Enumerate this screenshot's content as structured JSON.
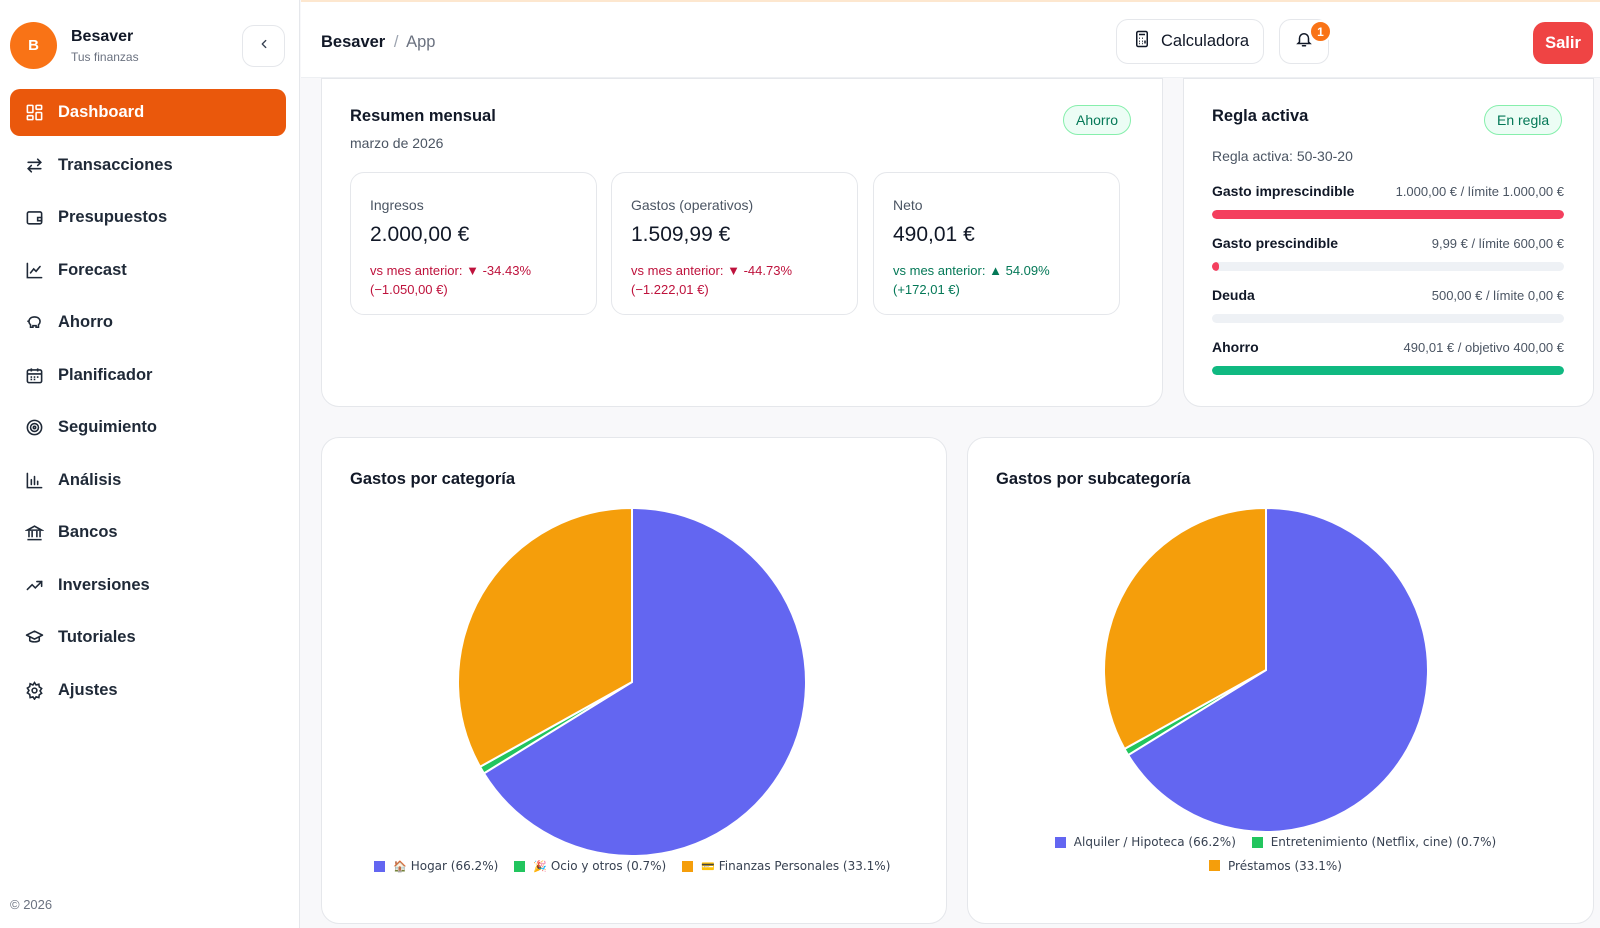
{
  "brand": {
    "logo_letter": "B",
    "name": "Besaver",
    "tagline": "Tus finanzas"
  },
  "sidebar": {
    "items": [
      {
        "label": "Dashboard",
        "icon": "dashboard-icon",
        "active": true
      },
      {
        "label": "Transacciones",
        "icon": "arrows-icon"
      },
      {
        "label": "Presupuestos",
        "icon": "wallet-icon"
      },
      {
        "label": "Forecast",
        "icon": "line-chart-icon"
      },
      {
        "label": "Ahorro",
        "icon": "piggy-bank-icon"
      },
      {
        "label": "Planificador",
        "icon": "calendar-icon"
      },
      {
        "label": "Seguimiento",
        "icon": "target-icon"
      },
      {
        "label": "Análisis",
        "icon": "bar-chart-icon"
      },
      {
        "label": "Bancos",
        "icon": "bank-icon"
      },
      {
        "label": "Inversiones",
        "icon": "trending-up-icon"
      },
      {
        "label": "Tutoriales",
        "icon": "graduation-cap-icon"
      },
      {
        "label": "Ajustes",
        "icon": "gear-icon"
      }
    ],
    "footer": "© 2026"
  },
  "topbar": {
    "breadcrumb_root": "Besaver",
    "breadcrumb_sep": "/",
    "breadcrumb_current": "App",
    "calculator_label": "Calculadora",
    "notification_count": "1",
    "logout_label": "Salir"
  },
  "summary": {
    "title": "Resumen mensual",
    "period": "marzo de 2026",
    "badge": "Ahorro",
    "stats": [
      {
        "label": "Ingresos",
        "value": "2.000,00 €",
        "delta_prefix": "vs mes anterior: ",
        "arrow": "▼",
        "delta_pct": "-34.43%",
        "delta_abs": "(−1.050,00 €)",
        "trend": "neg"
      },
      {
        "label": "Gastos (operativos)",
        "value": "1.509,99 €",
        "delta_prefix": "vs mes anterior: ",
        "arrow": "▼",
        "delta_pct": "-44.73%",
        "delta_abs": "(−1.222,01 €)",
        "trend": "neg"
      },
      {
        "label": "Neto",
        "value": "490,01 €",
        "delta_prefix": "vs mes anterior: ",
        "arrow": "▲",
        "delta_pct": "54.09%",
        "delta_abs": "(+172,01 €)",
        "trend": "pos"
      }
    ]
  },
  "rule": {
    "title": "Regla activa",
    "badge": "En regla",
    "subtitle": "Regla activa: 50-30-20",
    "rows": [
      {
        "name": "Gasto imprescindible",
        "value": "1.000,00 € / límite 1.000,00 €",
        "fill": 1.0,
        "color": "#f43f5e"
      },
      {
        "name": "Gasto prescindible",
        "value": "9,99 € / límite 600,00 €",
        "fill": 0.0167,
        "color": "#f43f5e"
      },
      {
        "name": "Deuda",
        "value": "500,00 € / límite 0,00 €",
        "fill": 0,
        "color": "#f43f5e"
      },
      {
        "name": "Ahorro",
        "value": "490,01 € / objetivo 400,00 €",
        "fill": 1.0,
        "color": "#10b981"
      }
    ]
  },
  "charts": {
    "left_title": "Gastos por categoría",
    "right_title": "Gastos por subcategoría"
  },
  "chart_data": [
    {
      "type": "pie",
      "title": "Gastos por categoría",
      "categories": [
        "Hogar",
        "Ocio y otros",
        "Finanzas Personales"
      ],
      "legend_labels": [
        "Hogar (66.2%)",
        "Ocio y otros (0.7%)",
        "Finanzas Personales (33.1%)"
      ],
      "legend_icons": [
        "🏠",
        "🎉",
        "💳"
      ],
      "values": [
        66.2,
        0.7,
        33.1
      ],
      "colors": [
        "#6366f1",
        "#22c55e",
        "#f59e0b"
      ],
      "legend_position": "bottom"
    },
    {
      "type": "pie",
      "title": "Gastos por subcategoría",
      "categories": [
        "Alquiler / Hipoteca",
        "Entretenimiento (Netflix, cine)",
        "Préstamos"
      ],
      "legend_labels": [
        "Alquiler / Hipoteca (66.2%)",
        "Entretenimiento (Netflix, cine) (0.7%)",
        "Préstamos (33.1%)"
      ],
      "values": [
        66.2,
        0.7,
        33.1
      ],
      "colors": [
        "#6366f1",
        "#22c55e",
        "#f59e0b"
      ],
      "legend_position": "bottom"
    }
  ]
}
